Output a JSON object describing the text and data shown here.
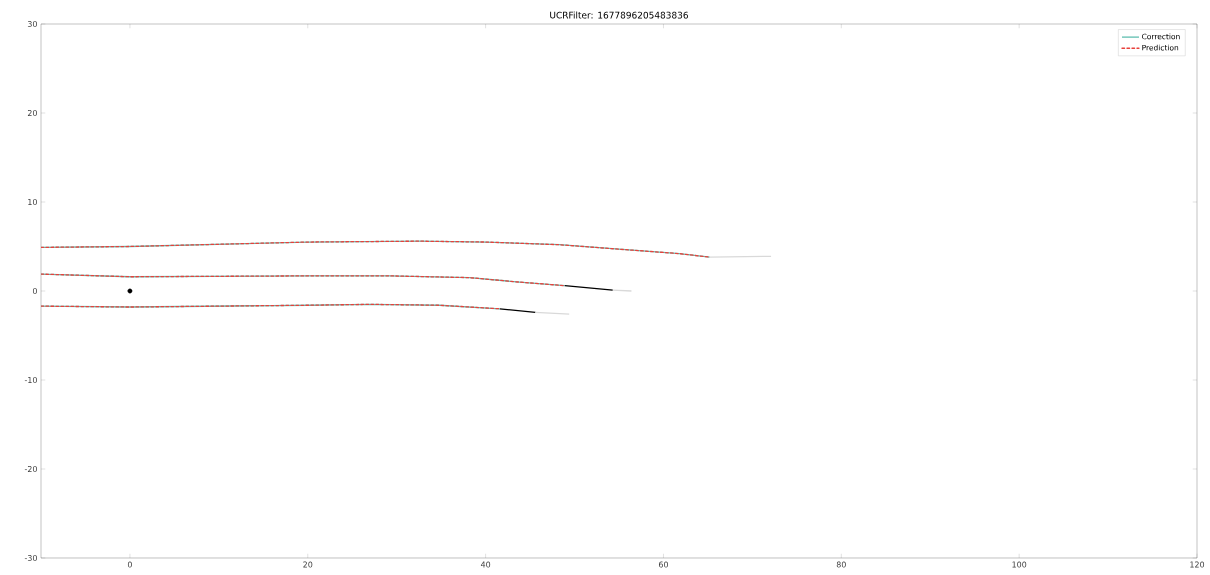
{
  "chart_data": {
    "type": "line",
    "title": "UCRFilter: 1677896205483836",
    "xlim": [
      -10,
      120
    ],
    "ylim": [
      -30,
      30
    ],
    "xticks": [
      0,
      20,
      40,
      60,
      80,
      100,
      120
    ],
    "yticks": [
      -30,
      -20,
      -10,
      0,
      10,
      20,
      30
    ],
    "legend": "top right",
    "series": [
      {
        "name": "Correction",
        "color": "#5fbfb0",
        "line_style": "solid",
        "x": [
          -10,
          0,
          20,
          32.6,
          40,
          48.3,
          55,
          61.8,
          65.2
        ],
        "values": [
          4.9,
          5.0,
          5.5,
          5.6,
          5.5,
          5.2,
          4.7,
          4.2,
          3.8
        ]
      },
      {
        "color": "#5fbfb0",
        "line_style": "solid",
        "x": [
          -10,
          0,
          20,
          29.2,
          38.2,
          43.8,
          48.9
        ],
        "values": [
          1.9,
          1.6,
          1.7,
          1.7,
          1.5,
          1.0,
          0.6
        ]
      },
      {
        "color": "#5fbfb0",
        "line_style": "solid",
        "x": [
          -10,
          0,
          20,
          27,
          34.8,
          41.6
        ],
        "values": [
          -1.7,
          -1.8,
          -1.6,
          -1.5,
          -1.6,
          -2.0
        ]
      },
      {
        "color": "#000000",
        "line_style": "solid",
        "x": [
          48.9,
          54.3
        ],
        "values": [
          0.6,
          0.1
        ]
      },
      {
        "color": "#000000",
        "line_style": "solid",
        "x": [
          41.6,
          45.6
        ],
        "values": [
          -2.0,
          -2.4
        ]
      },
      {
        "color": "#d9d9d9",
        "line_style": "solid",
        "x": [
          65.2,
          72.1
        ],
        "values": [
          3.8,
          3.9
        ]
      },
      {
        "color": "#d9d9d9",
        "line_style": "solid",
        "x": [
          54.3,
          56.4
        ],
        "values": [
          0.1,
          0.0
        ]
      },
      {
        "color": "#d9d9d9",
        "line_style": "solid",
        "x": [
          45.6,
          49.4
        ],
        "values": [
          -2.4,
          -2.6
        ]
      },
      {
        "name": "Prediction",
        "color": "#e8413c",
        "line_style": "dashed",
        "x": [
          -10,
          0,
          20,
          32.6,
          40,
          48.3,
          55,
          61.8,
          65.2
        ],
        "values": [
          4.9,
          5.0,
          5.5,
          5.6,
          5.5,
          5.2,
          4.7,
          4.2,
          3.8
        ]
      },
      {
        "color": "#e8413c",
        "line_style": "dashed",
        "x": [
          -10,
          0,
          20,
          29.2,
          38.2,
          43.8,
          48.9
        ],
        "values": [
          1.9,
          1.6,
          1.7,
          1.7,
          1.5,
          1.0,
          0.6
        ]
      },
      {
        "color": "#e8413c",
        "line_style": "dashed",
        "x": [
          -10,
          0,
          20,
          27,
          34.8,
          41.6
        ],
        "values": [
          -1.7,
          -1.8,
          -1.6,
          -1.5,
          -1.6,
          -2.0
        ]
      },
      {
        "type": "scatter",
        "color": "#000000",
        "x": [
          0
        ],
        "values": [
          0
        ]
      }
    ]
  }
}
